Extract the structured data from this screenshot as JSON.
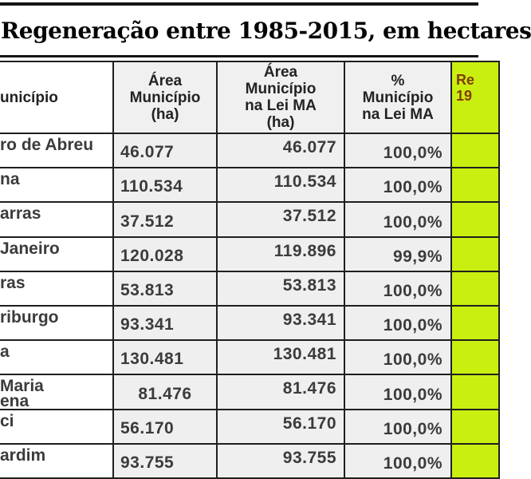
{
  "title": "Regeneração entre 1985-2015, em hectares",
  "table": {
    "headers": {
      "municipio": "unicípio",
      "area": "Área\nMunicípio\n(ha)",
      "area_lei": "Área\nMunicípio\nna Lei MA\n(ha)",
      "pct": "%\nMunicípio\nna Lei MA",
      "regen_line1": "Re",
      "regen_line2": "19"
    },
    "rows": [
      {
        "municipio": "ro de Abreu",
        "area": "46.077",
        "area_lei": "46.077",
        "pct": "100,0%"
      },
      {
        "municipio": "na",
        "area": "110.534",
        "area_lei": "110.534",
        "pct": "100,0%"
      },
      {
        "municipio": "arras",
        "area": "37.512",
        "area_lei": "37.512",
        "pct": "100,0%"
      },
      {
        "municipio": "Janeiro",
        "area": "120.028",
        "area_lei": "119.896",
        "pct": "99,9%"
      },
      {
        "municipio": "ras",
        "area": "53.813",
        "area_lei": "53.813",
        "pct": "100,0%"
      },
      {
        "municipio": "riburgo",
        "area": "93.341",
        "area_lei": "93.341",
        "pct": "100,0%"
      },
      {
        "municipio": "a",
        "area": "130.481",
        "area_lei": "130.481",
        "pct": "100,0%"
      },
      {
        "municipio": "Maria\nena",
        "area": "81.476",
        "area_lei": "81.476",
        "pct": "100,0%"
      },
      {
        "municipio": "ci",
        "area": "56.170",
        "area_lei": "56.170",
        "pct": "100,0%"
      },
      {
        "municipio": "ardim",
        "area": "93.755",
        "area_lei": "93.755",
        "pct": "100,0%"
      }
    ]
  },
  "colors": {
    "highlight_green": "#c9ef10",
    "header_bg": "#f0f0f0",
    "cell_bg": "#efefef",
    "border": "#1f1f1f",
    "regen_header_text": "#833c00",
    "body_text": "#3b3b3b"
  }
}
